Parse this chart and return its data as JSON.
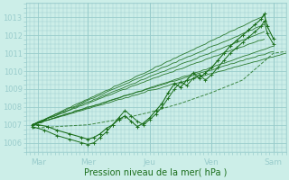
{
  "title": "Pression niveau de la mer( hPa )",
  "ylabel_ticks": [
    1006,
    1007,
    1008,
    1009,
    1010,
    1011,
    1012,
    1013
  ],
  "ylim": [
    1005.5,
    1013.8
  ],
  "xlim": [
    0,
    4.2
  ],
  "xtick_positions": [
    0.2,
    1.0,
    2.0,
    3.0,
    4.0
  ],
  "xtick_labels": [
    "Mar",
    "Mer",
    "Jeu",
    "Ven",
    "Sam"
  ],
  "background_color": "#cceee8",
  "grid_color": "#99cccc",
  "line_color": "#1a6e1a",
  "figsize": [
    3.2,
    2.0
  ],
  "dpi": 100
}
